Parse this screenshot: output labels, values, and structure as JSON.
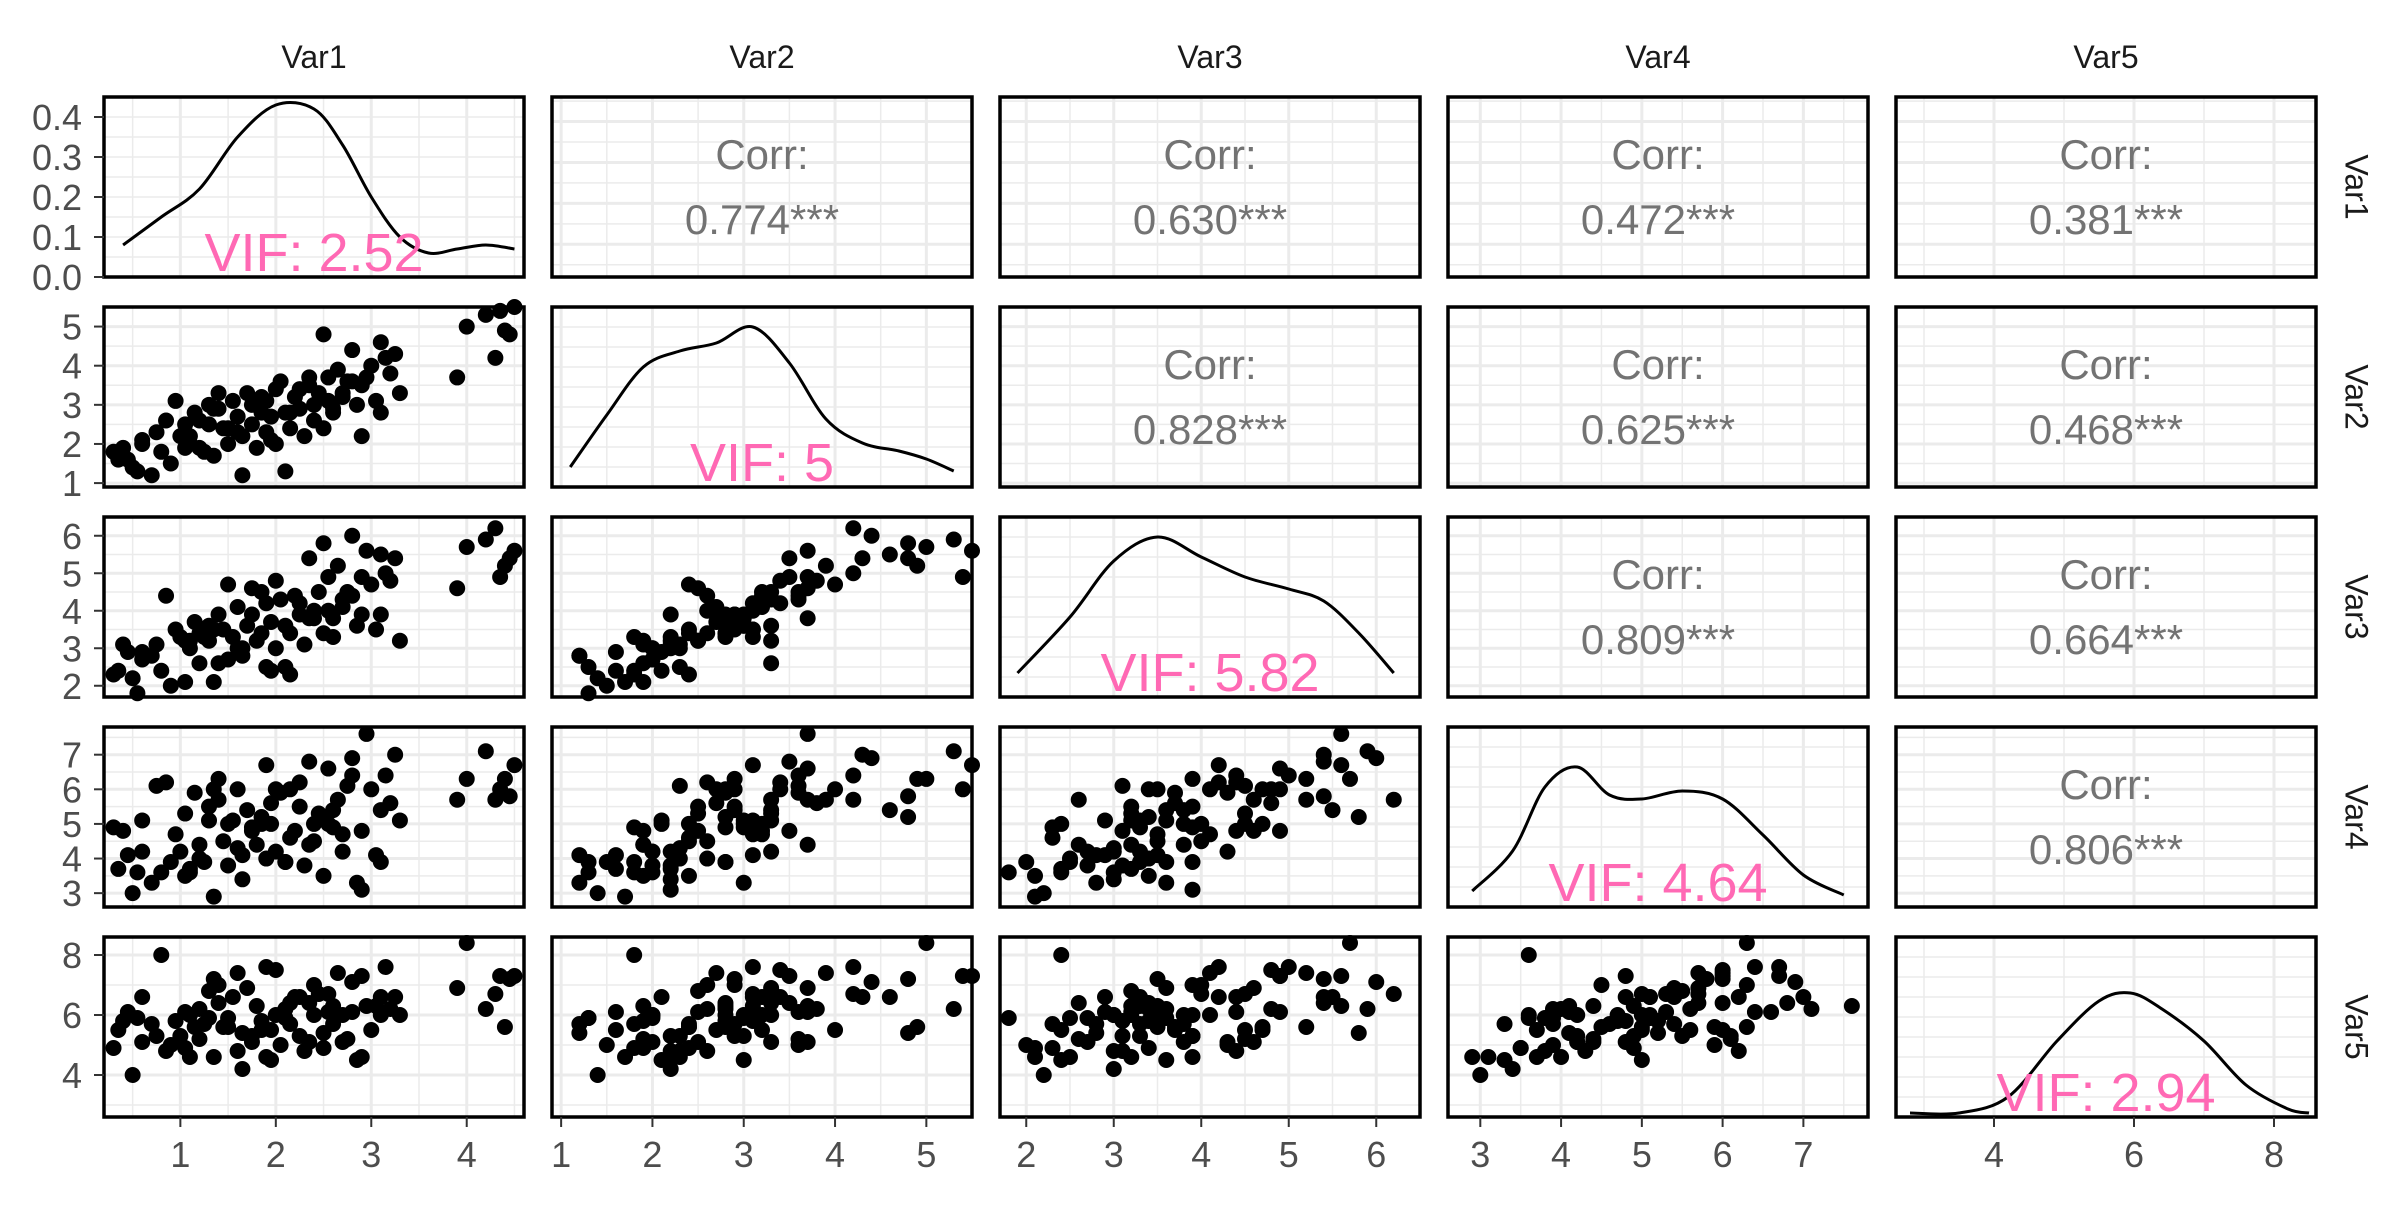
{
  "chart_data": {
    "type": "scatter",
    "subtype": "scatterplot-matrix",
    "variables": [
      "Var1",
      "Var2",
      "Var3",
      "Var4",
      "Var5"
    ],
    "ranges": [
      [
        0.2,
        4.6
      ],
      [
        0.9,
        5.5
      ],
      [
        1.7,
        6.5
      ],
      [
        2.6,
        7.8
      ],
      [
        2.6,
        8.6
      ]
    ],
    "ticks": [
      [
        1,
        2,
        3,
        4
      ],
      [
        1,
        2,
        3,
        4,
        5
      ],
      [
        2,
        3,
        4,
        5,
        6
      ],
      [
        3,
        4,
        5,
        6,
        7
      ],
      [
        4,
        6,
        8
      ]
    ],
    "density_axis": {
      "range": [
        0,
        0.45
      ],
      "ticks": [
        "0.0",
        "0.1",
        "0.2",
        "0.3",
        "0.4"
      ]
    },
    "correlations": [
      {
        "row": "Var1",
        "col": "Var2",
        "label": "Corr:",
        "value": "0.774***"
      },
      {
        "row": "Var1",
        "col": "Var3",
        "label": "Corr:",
        "value": "0.630***"
      },
      {
        "row": "Var1",
        "col": "Var4",
        "label": "Corr:",
        "value": "0.472***"
      },
      {
        "row": "Var1",
        "col": "Var5",
        "label": "Corr:",
        "value": "0.381***"
      },
      {
        "row": "Var2",
        "col": "Var3",
        "label": "Corr:",
        "value": "0.828***"
      },
      {
        "row": "Var2",
        "col": "Var4",
        "label": "Corr:",
        "value": "0.625***"
      },
      {
        "row": "Var2",
        "col": "Var5",
        "label": "Corr:",
        "value": "0.468***"
      },
      {
        "row": "Var3",
        "col": "Var4",
        "label": "Corr:",
        "value": "0.809***"
      },
      {
        "row": "Var3",
        "col": "Var5",
        "label": "Corr:",
        "value": "0.664***"
      },
      {
        "row": "Var4",
        "col": "Var5",
        "label": "Corr:",
        "value": "0.806***"
      }
    ],
    "vif": [
      {
        "var": "Var1",
        "label": "VIF: 2.52"
      },
      {
        "var": "Var2",
        "label": "VIF: 5"
      },
      {
        "var": "Var3",
        "label": "VIF: 5.82"
      },
      {
        "var": "Var4",
        "label": "VIF: 4.64"
      },
      {
        "var": "Var5",
        "label": "VIF: 2.94"
      }
    ],
    "densities": [
      [
        [
          0.4,
          0.08
        ],
        [
          0.8,
          0.15
        ],
        [
          1.2,
          0.22
        ],
        [
          1.6,
          0.35
        ],
        [
          2.0,
          0.43
        ],
        [
          2.4,
          0.42
        ],
        [
          2.7,
          0.33
        ],
        [
          3.0,
          0.2
        ],
        [
          3.3,
          0.1
        ],
        [
          3.6,
          0.06
        ],
        [
          3.9,
          0.07
        ],
        [
          4.2,
          0.08
        ],
        [
          4.5,
          0.07
        ]
      ],
      [
        [
          1.1,
          0.05
        ],
        [
          1.5,
          0.18
        ],
        [
          1.9,
          0.3
        ],
        [
          2.3,
          0.34
        ],
        [
          2.7,
          0.36
        ],
        [
          3.1,
          0.4
        ],
        [
          3.5,
          0.31
        ],
        [
          3.9,
          0.17
        ],
        [
          4.3,
          0.11
        ],
        [
          4.7,
          0.09
        ],
        [
          5.0,
          0.07
        ],
        [
          5.3,
          0.04
        ]
      ],
      [
        [
          1.9,
          0.06
        ],
        [
          2.5,
          0.2
        ],
        [
          3.0,
          0.34
        ],
        [
          3.5,
          0.4
        ],
        [
          4.0,
          0.35
        ],
        [
          4.5,
          0.3
        ],
        [
          5.0,
          0.27
        ],
        [
          5.4,
          0.24
        ],
        [
          5.8,
          0.16
        ],
        [
          6.2,
          0.06
        ]
      ],
      [
        [
          2.9,
          0.04
        ],
        [
          3.4,
          0.14
        ],
        [
          3.8,
          0.3
        ],
        [
          4.2,
          0.35
        ],
        [
          4.6,
          0.28
        ],
        [
          5.0,
          0.27
        ],
        [
          5.5,
          0.29
        ],
        [
          6.0,
          0.27
        ],
        [
          6.5,
          0.18
        ],
        [
          7.0,
          0.08
        ],
        [
          7.5,
          0.03
        ]
      ],
      [
        [
          2.8,
          0.01
        ],
        [
          3.5,
          0.01
        ],
        [
          4.2,
          0.05
        ],
        [
          4.9,
          0.19
        ],
        [
          5.5,
          0.29
        ],
        [
          5.95,
          0.31
        ],
        [
          6.4,
          0.27
        ],
        [
          7.0,
          0.19
        ],
        [
          7.6,
          0.08
        ],
        [
          8.2,
          0.02
        ],
        [
          8.5,
          0.01
        ]
      ]
    ],
    "points": [
      [
        0.35,
        1.6,
        2.4,
        3.7,
        5.5
      ],
      [
        0.4,
        1.9,
        3.1,
        4.8,
        5.8
      ],
      [
        0.5,
        1.4,
        2.2,
        3.0,
        4.0
      ],
      [
        0.6,
        2.1,
        2.9,
        5.1,
        6.6
      ],
      [
        0.7,
        1.2,
        2.8,
        3.3,
        5.7
      ],
      [
        0.8,
        1.8,
        2.4,
        3.6,
        8.0
      ],
      [
        0.85,
        2.6,
        4.4,
        6.2,
        4.8
      ],
      [
        0.9,
        1.5,
        2.0,
        3.9,
        5.0
      ],
      [
        1.0,
        2.2,
        3.3,
        4.2,
        5.3
      ],
      [
        1.1,
        2.0,
        3.0,
        3.6,
        6.0
      ],
      [
        1.15,
        2.8,
        3.7,
        5.9,
        5.6
      ],
      [
        1.2,
        1.9,
        2.6,
        4.4,
        5.2
      ],
      [
        1.3,
        2.5,
        3.2,
        5.5,
        6.8
      ],
      [
        1.35,
        1.7,
        2.1,
        2.9,
        4.6
      ],
      [
        1.4,
        2.9,
        3.9,
        6.3,
        7.0
      ],
      [
        1.45,
        2.4,
        3.5,
        4.5,
        5.6
      ],
      [
        1.5,
        2.0,
        2.7,
        3.8,
        5.9
      ],
      [
        1.55,
        3.1,
        3.3,
        5.1,
        6.6
      ],
      [
        1.6,
        2.7,
        4.1,
        6.0,
        7.4
      ],
      [
        1.65,
        2.2,
        3.0,
        3.4,
        4.2
      ],
      [
        1.7,
        3.3,
        3.6,
        5.4,
        6.9
      ],
      [
        1.75,
        2.5,
        4.6,
        4.8,
        5.1
      ],
      [
        1.8,
        1.9,
        3.2,
        4.4,
        6.3
      ],
      [
        1.85,
        2.8,
        3.4,
        5.2,
        5.8
      ],
      [
        1.9,
        3.1,
        4.2,
        6.7,
        7.6
      ],
      [
        1.9,
        2.3,
        2.5,
        4.0,
        4.6
      ],
      [
        1.95,
        2.7,
        3.7,
        5.6,
        5.5
      ],
      [
        2.0,
        3.4,
        4.8,
        6.0,
        7.5
      ],
      [
        2.0,
        2.0,
        3.0,
        4.2,
        6.0
      ],
      [
        2.05,
        3.6,
        4.3,
        5.9,
        5.0
      ],
      [
        2.1,
        2.8,
        3.6,
        3.9,
        6.2
      ],
      [
        2.15,
        2.4,
        2.3,
        4.6,
        5.7
      ],
      [
        2.2,
        3.2,
        4.4,
        4.8,
        6.6
      ],
      [
        2.25,
        2.9,
        3.9,
        5.5,
        5.3
      ],
      [
        2.3,
        2.2,
        3.1,
        3.8,
        4.8
      ],
      [
        2.35,
        3.5,
        5.4,
        6.8,
        6.4
      ],
      [
        2.4,
        3.0,
        3.8,
        5.0,
        6.0
      ],
      [
        2.4,
        2.6,
        4.0,
        4.5,
        7.0
      ],
      [
        2.45,
        3.3,
        4.5,
        5.3,
        6.7
      ],
      [
        2.5,
        4.8,
        5.8,
        5.2,
        5.4
      ],
      [
        2.55,
        3.7,
        4.9,
        6.6,
        6.1
      ],
      [
        2.6,
        2.8,
        3.3,
        4.9,
        6.3
      ],
      [
        2.65,
        3.9,
        5.2,
        5.7,
        7.4
      ],
      [
        2.7,
        3.2,
        4.1,
        4.7,
        6.0
      ],
      [
        2.75,
        3.6,
        4.5,
        6.1,
        5.2
      ],
      [
        2.8,
        4.4,
        6.0,
        6.9,
        7.1
      ],
      [
        2.85,
        3.0,
        3.6,
        3.3,
        4.5
      ],
      [
        2.9,
        2.2,
        3.9,
        3.1,
        4.6
      ],
      [
        2.95,
        3.7,
        5.6,
        7.6,
        6.3
      ],
      [
        3.0,
        4.0,
        4.7,
        6.0,
        5.5
      ],
      [
        3.05,
        3.1,
        3.5,
        4.1,
        6.3
      ],
      [
        3.1,
        4.6,
        5.5,
        5.4,
        6.6
      ],
      [
        3.15,
        4.2,
        5.0,
        6.4,
        7.6
      ],
      [
        3.2,
        3.8,
        4.8,
        5.6,
        6.2
      ],
      [
        3.25,
        4.3,
        5.4,
        7.0,
        6.6
      ],
      [
        3.3,
        3.3,
        3.2,
        5.1,
        6.0
      ],
      [
        3.9,
        3.7,
        4.6,
        5.7,
        6.9
      ],
      [
        4.0,
        5.0,
        5.7,
        6.3,
        8.4
      ],
      [
        4.2,
        5.3,
        5.9,
        7.1,
        6.2
      ],
      [
        4.3,
        4.2,
        6.2,
        5.7,
        6.7
      ],
      [
        4.35,
        5.4,
        4.9,
        6.0,
        7.3
      ],
      [
        4.4,
        4.9,
        5.2,
        6.3,
        5.6
      ],
      [
        4.45,
        4.8,
        5.4,
        5.8,
        7.2
      ],
      [
        4.5,
        5.5,
        5.6,
        6.7,
        7.3
      ],
      [
        1.5,
        2.4,
        4.7,
        5.0,
        5.6
      ],
      [
        1.2,
        2.6,
        3.4,
        4.0,
        6.2
      ],
      [
        0.6,
        2.0,
        2.7,
        4.2,
        5.1
      ],
      [
        0.95,
        3.1,
        3.5,
        4.7,
        5.8
      ],
      [
        1.4,
        3.3,
        2.6,
        5.7,
        6.4
      ],
      [
        1.65,
        1.2,
        2.8,
        4.1,
        5.4
      ],
      [
        2.1,
        1.3,
        2.5,
        3.9,
        5.9
      ],
      [
        2.5,
        2.4,
        3.4,
        3.5,
        4.9
      ],
      [
        1.75,
        3.0,
        3.9,
        4.9,
        5.3
      ],
      [
        2.25,
        3.4,
        4.2,
        6.2,
        6.6
      ],
      [
        2.6,
        2.9,
        3.8,
        5.4,
        5.7
      ],
      [
        0.3,
        1.8,
        2.3,
        4.9,
        4.9
      ],
      [
        0.45,
        1.6,
        2.9,
        4.1,
        6.1
      ],
      [
        1.05,
        1.9,
        2.1,
        3.5,
        4.9
      ],
      [
        1.35,
        2.9,
        3.5,
        6.0,
        7.2
      ],
      [
        1.85,
        3.2,
        4.5,
        5.0,
        5.5
      ],
      [
        2.7,
        3.3,
        4.3,
        4.2,
        5.1
      ],
      [
        2.9,
        3.5,
        4.9,
        4.8,
        7.3
      ],
      [
        3.1,
        2.8,
        3.9,
        3.9,
        6.0
      ],
      [
        1.6,
        2.3,
        3.0,
        4.3,
        4.8
      ],
      [
        0.55,
        1.3,
        1.8,
        3.6,
        5.9
      ],
      [
        1.05,
        2.5,
        3.2,
        5.3,
        6.1
      ],
      [
        1.25,
        1.8,
        3.3,
        3.9,
        5.7
      ],
      [
        1.95,
        2.1,
        2.4,
        5.0,
        4.5
      ],
      [
        2.15,
        2.8,
        3.4,
        6.0,
        6.4
      ],
      [
        2.35,
        3.7,
        3.8,
        4.4,
        5.1
      ],
      [
        0.75,
        2.3,
        3.1,
        6.1,
        5.3
      ],
      [
        1.3,
        3.0,
        3.6,
        5.1,
        5.9
      ],
      [
        2.55,
        3.1,
        4.0,
        5.0,
        6.7
      ],
      [
        2.8,
        3.6,
        4.4,
        6.4,
        6.1
      ],
      [
        1.1,
        2.2,
        3.2,
        3.7,
        4.6
      ]
    ]
  }
}
